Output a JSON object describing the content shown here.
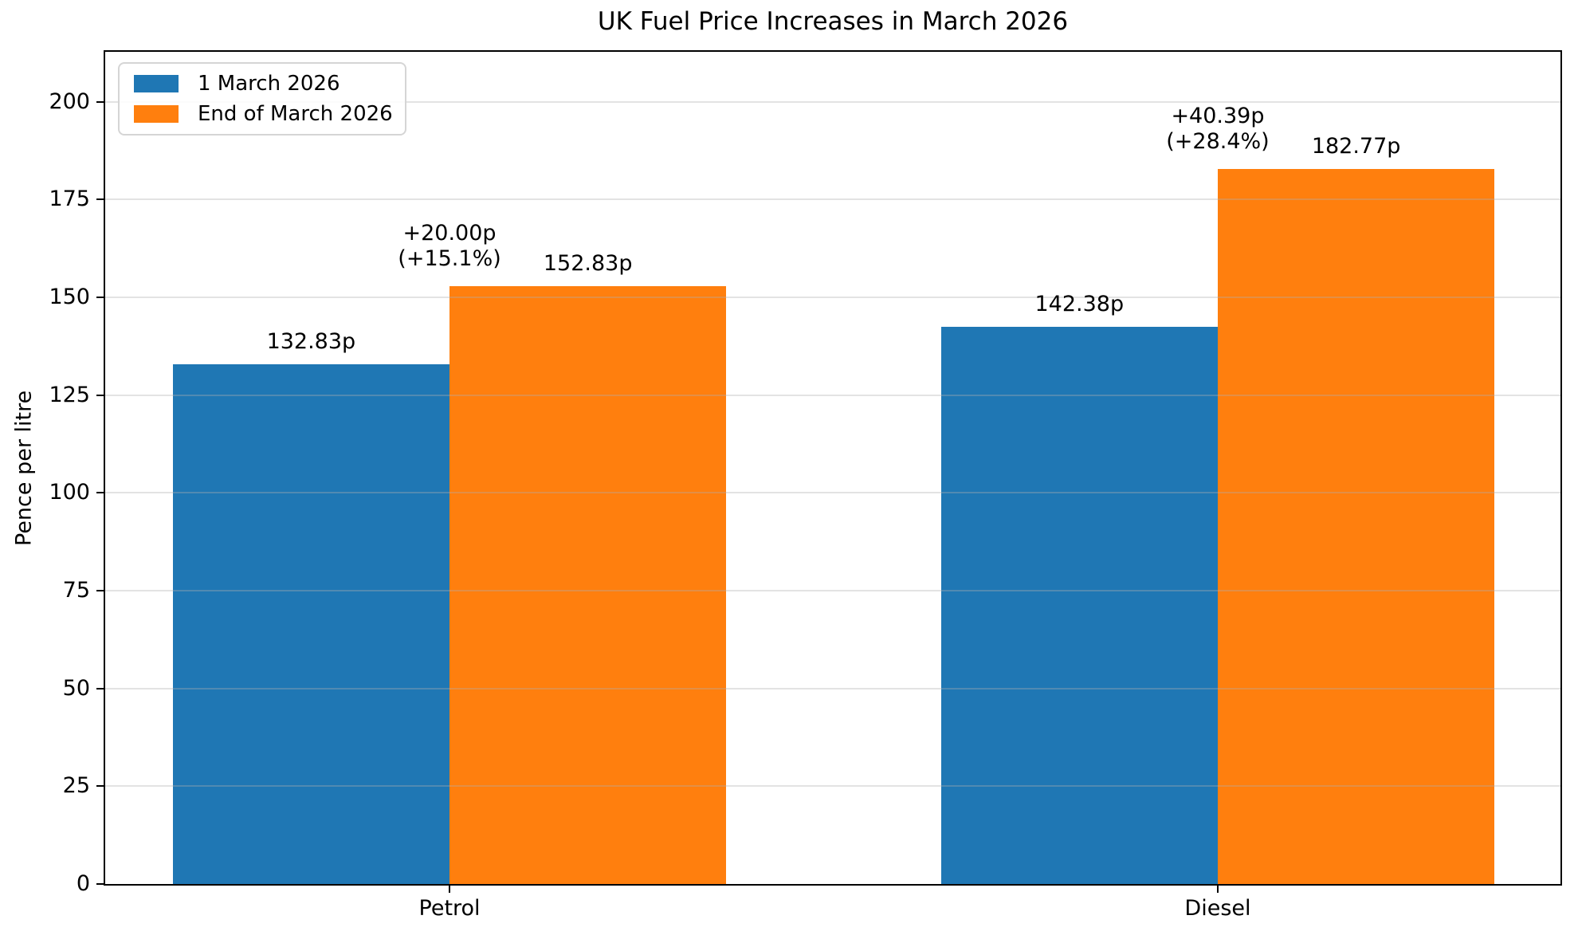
{
  "chart_data": {
    "type": "bar",
    "title": "UK Fuel Price Increases in March 2026",
    "xlabel": "",
    "ylabel": "Pence per litre",
    "categories": [
      "Petrol",
      "Diesel"
    ],
    "series": [
      {
        "name": "1 March 2026",
        "color": "#1f77b4",
        "values": [
          132.83,
          142.38
        ]
      },
      {
        "name": "End of March 2026",
        "color": "#ff7f0e",
        "values": [
          152.83,
          182.77
        ]
      }
    ],
    "bar_value_labels": [
      [
        "132.83p",
        "142.38p"
      ],
      [
        "152.83p",
        "182.77p"
      ]
    ],
    "annotations": [
      {
        "category": "Petrol",
        "line1": "+20.00p",
        "line2": "(+15.1%)"
      },
      {
        "category": "Diesel",
        "line1": "+40.39p",
        "line2": "(+28.4%)"
      }
    ],
    "ylim": [
      0,
      212.8
    ],
    "yticks": [
      0,
      25,
      50,
      75,
      100,
      125,
      150,
      175,
      200
    ],
    "grid": true,
    "legend_position": "upper left"
  }
}
